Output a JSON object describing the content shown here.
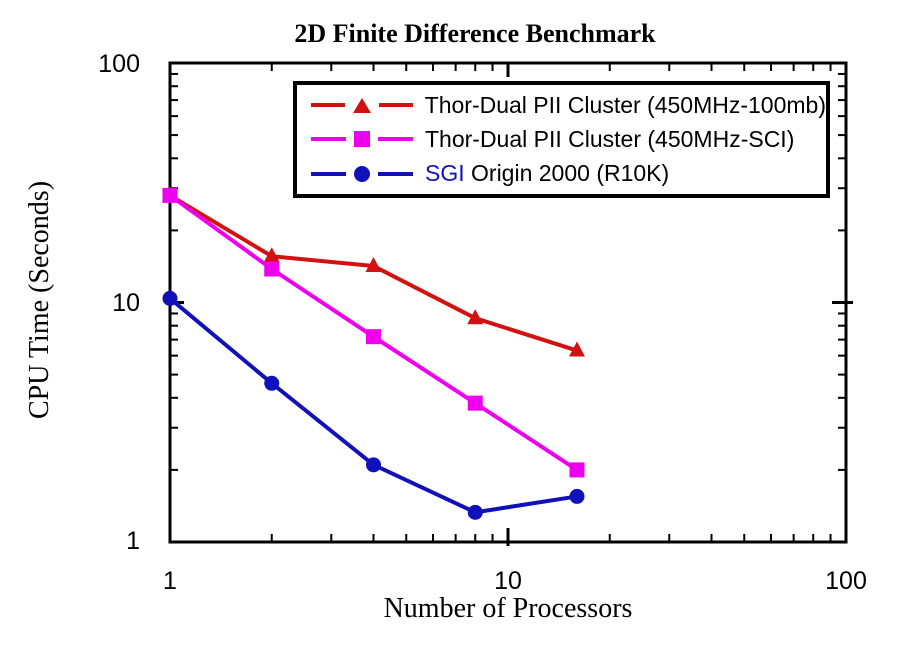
{
  "figure": {
    "title": "2D Finite Difference Benchmark",
    "x_axis_label": "Number of Processors",
    "y_axis_label": "CPU Time (Seconds)"
  },
  "axes": {
    "x_tick_labels": [
      "1",
      "10",
      "100"
    ],
    "y_tick_labels": [
      "100",
      "10",
      "1"
    ]
  },
  "colors": {
    "red_series": "#d31111",
    "magenta_series": "#ee00ee",
    "blue_series": "#1111bb",
    "frame": "#000000",
    "background": "#ffffff"
  },
  "legend": {
    "rows": [
      {
        "marker": "triangle",
        "color": "#d31111",
        "parts": [
          {
            "text": "Thor-Dual PII Cluster (450MHz-100mb)",
            "color": "#000000"
          }
        ]
      },
      {
        "marker": "square",
        "color": "#ee00ee",
        "parts": [
          {
            "text": "Thor-Dual PII Cluster (450MHz-SCI)",
            "color": "#000000"
          }
        ]
      },
      {
        "marker": "circle",
        "color": "#1111bb",
        "parts": [
          {
            "text": "SGI",
            "color": "#1111bb"
          },
          {
            "text": " Origin 2000 (R10K)",
            "color": "#000000"
          }
        ]
      }
    ]
  },
  "chart_data": {
    "type": "line",
    "title": "2D Finite Difference Benchmark",
    "xlabel": "Number of Processors",
    "ylabel": "CPU Time (Seconds)",
    "x_scale": "log",
    "y_scale": "log",
    "xlim": [
      1,
      100
    ],
    "ylim": [
      1,
      100
    ],
    "grid": false,
    "legend_position": "upper center inside",
    "x": [
      1,
      2,
      4,
      8,
      16
    ],
    "series": [
      {
        "name": "Thor-Dual PII Cluster (450MHz-100mb)",
        "color": "#d31111",
        "marker": "triangle",
        "values": [
          28,
          15.6,
          14.2,
          8.6,
          6.3
        ]
      },
      {
        "name": "Thor-Dual PII Cluster (450MHz-SCI)",
        "color": "#ee00ee",
        "marker": "square",
        "values": [
          28,
          13.8,
          7.2,
          3.8,
          2.0
        ]
      },
      {
        "name": "SGI Origin 2000 (R10K)",
        "color": "#1111bb",
        "marker": "circle",
        "values": [
          10.4,
          4.6,
          2.1,
          1.33,
          1.55
        ]
      }
    ],
    "minor_ticks": [
      2,
      3,
      4,
      5,
      6,
      7,
      8,
      9,
      20,
      30,
      40,
      50,
      60,
      70,
      80,
      90
    ],
    "major_ticks": [
      10
    ]
  }
}
